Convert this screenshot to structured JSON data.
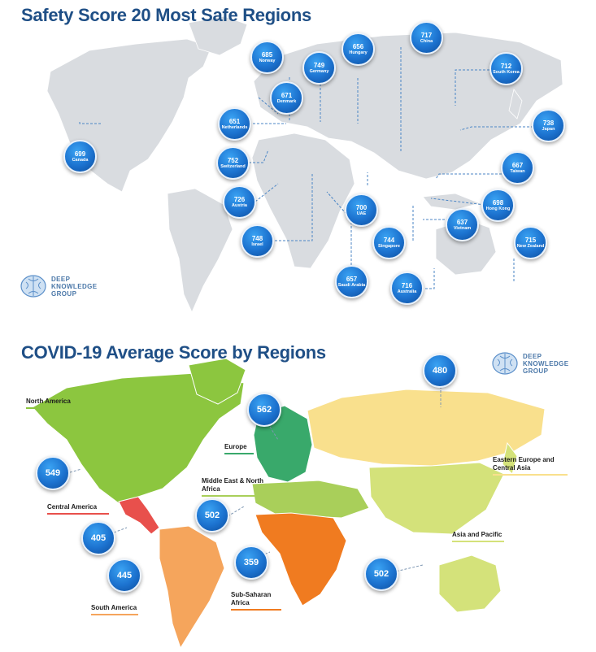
{
  "top": {
    "title": "Safety Score 20 Most Safe Regions",
    "logo_lines": [
      "DEEP",
      "KNOWLEDGE",
      "GROUP"
    ],
    "regions": [
      {
        "name": "Norway",
        "score": "685"
      },
      {
        "name": "Germany",
        "score": "749"
      },
      {
        "name": "Hungary",
        "score": "656"
      },
      {
        "name": "China",
        "score": "717"
      },
      {
        "name": "South Korea",
        "score": "712"
      },
      {
        "name": "Denmark",
        "score": "671"
      },
      {
        "name": "Netherlands",
        "score": "651"
      },
      {
        "name": "Japan",
        "score": "738"
      },
      {
        "name": "Canada",
        "score": "699"
      },
      {
        "name": "Switzerland",
        "score": "752"
      },
      {
        "name": "Taiwan",
        "score": "667"
      },
      {
        "name": "Austria",
        "score": "726"
      },
      {
        "name": "UAE",
        "score": "700"
      },
      {
        "name": "Hong Kong",
        "score": "698"
      },
      {
        "name": "Israel",
        "score": "748"
      },
      {
        "name": "Singapore",
        "score": "744"
      },
      {
        "name": "Vietnam",
        "score": "637"
      },
      {
        "name": "New Zealand",
        "score": "715"
      },
      {
        "name": "Saudi Arabia",
        "score": "657"
      },
      {
        "name": "Australia",
        "score": "716"
      }
    ]
  },
  "bottom": {
    "title": "COVID-19 Average Score by Regions",
    "logo_lines": [
      "DEEP",
      "KNOWLEDGE",
      "GROUP"
    ],
    "regions": [
      {
        "name": "North America",
        "score": "549",
        "color": "#8cc63f"
      },
      {
        "name": "Europe",
        "score": "562",
        "color": "#39a96b"
      },
      {
        "name": "Middle East & North Africa",
        "score": "502",
        "color": "#a9cf5a"
      },
      {
        "name": "Central America",
        "score": "405",
        "color": "#e8504c"
      },
      {
        "name": "South America",
        "score": "445",
        "color": "#f5a55c"
      },
      {
        "name": "Sub-Saharan Africa",
        "score": "359",
        "color": "#f07b20"
      },
      {
        "name": "Eastern Europe and Central Asia",
        "score": "480",
        "color": "#f9e08d"
      },
      {
        "name": "Asia and Pacific",
        "score": "502",
        "color": "#d4e27a"
      }
    ]
  }
}
